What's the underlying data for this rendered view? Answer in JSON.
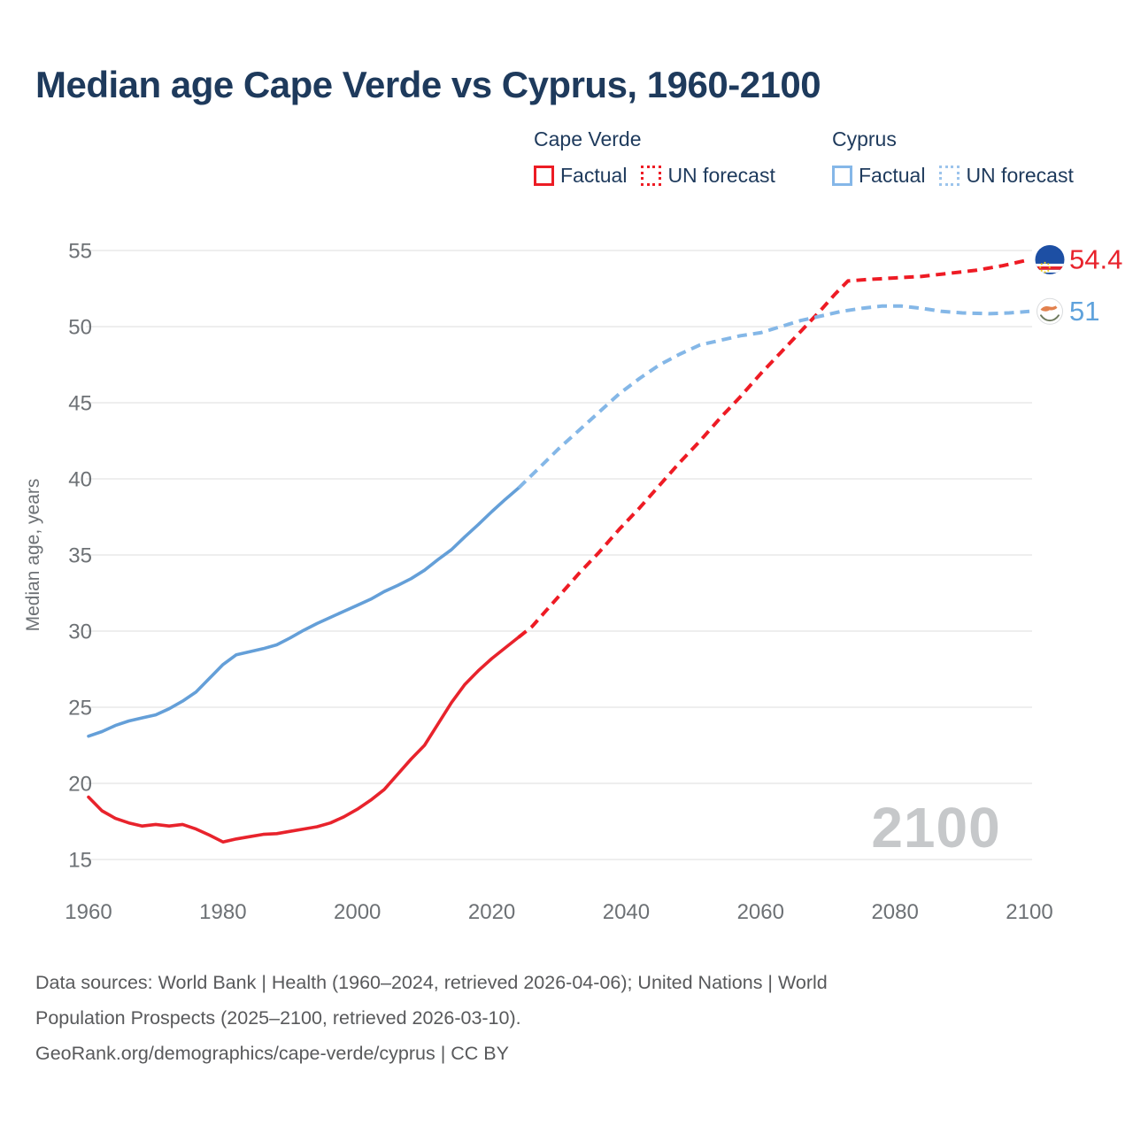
{
  "title": "Median age Cape Verde vs Cyprus, 1960-2100",
  "legend": {
    "groups": [
      {
        "name": "Cape Verde",
        "color_key": "legend_red",
        "items": [
          {
            "label": "Factual",
            "line_style": "solid"
          },
          {
            "label": "UN forecast",
            "line_style": "dotted"
          }
        ]
      },
      {
        "name": "Cyprus",
        "color_key": "legend_blue",
        "items": [
          {
            "label": "Factual",
            "line_style": "solid"
          },
          {
            "label": "UN forecast",
            "line_style": "dotted"
          }
        ]
      }
    ]
  },
  "colors": {
    "cape_verde": "#e8232c",
    "cape_verde_forecast": "#ee1b24",
    "cyprus": "#649fd8",
    "cyprus_forecast": "#84b7e7",
    "cyprus_label": "#5fa2dc",
    "legend_red": "#ec1c24",
    "legend_red_dotted": "#ee1b24",
    "legend_blue": "#85b7e8",
    "legend_blue_dotted": "#9cc4ec",
    "title_text": "#1e3a5c",
    "legend_text": "#1e3a5c",
    "axis_text": "#6d7175",
    "gridline": "#e8e8e8",
    "watermark": "#c6c8ca",
    "footer_text": "#58595b",
    "flag_cv_blue": "#1d4fa4",
    "flag_star_yellow": "#f7d116",
    "flag_cy_copper": "#e2814e",
    "flag_cy_olive": "#6e7a5e"
  },
  "end_labels": {
    "cape_verde": "54.4",
    "cyprus": "51"
  },
  "watermark": "2100",
  "footer": {
    "lines": [
      "Data sources: World Bank | Health (1960–2024, retrieved 2026-04-06); United Nations | World",
      "Population Prospects (2025–2100, retrieved 2026-03-10).",
      "GeoRank.org/demographics/cape-verde/cyprus | CC BY"
    ]
  },
  "chart_data": {
    "type": "line",
    "title": "Median age Cape Verde vs Cyprus, 1960-2100",
    "xlabel": "",
    "ylabel": "Median age, years",
    "xlim": [
      1960,
      2100
    ],
    "ylim": [
      15,
      55
    ],
    "x_ticks": [
      1960,
      1980,
      2000,
      2020,
      2040,
      2060,
      2080,
      2100
    ],
    "y_ticks": [
      15,
      20,
      25,
      30,
      35,
      40,
      45,
      50,
      55
    ],
    "grid": "horizontal",
    "legend_position": "top-right",
    "series": [
      {
        "name": "Cape Verde — Factual",
        "color_key": "cape_verde",
        "style": "solid",
        "points": [
          [
            1960,
            19.1
          ],
          [
            1962,
            18.2
          ],
          [
            1964,
            17.7
          ],
          [
            1966,
            17.4
          ],
          [
            1968,
            17.2
          ],
          [
            1970,
            17.3
          ],
          [
            1972,
            17.2
          ],
          [
            1974,
            17.3
          ],
          [
            1976,
            17.0
          ],
          [
            1978,
            16.6
          ],
          [
            1980,
            16.15
          ],
          [
            1982,
            16.35
          ],
          [
            1984,
            16.5
          ],
          [
            1986,
            16.65
          ],
          [
            1988,
            16.7
          ],
          [
            1990,
            16.85
          ],
          [
            1992,
            17.0
          ],
          [
            1994,
            17.15
          ],
          [
            1996,
            17.4
          ],
          [
            1998,
            17.8
          ],
          [
            2000,
            18.3
          ],
          [
            2002,
            18.9
          ],
          [
            2004,
            19.6
          ],
          [
            2006,
            20.6
          ],
          [
            2008,
            21.6
          ],
          [
            2010,
            22.5
          ],
          [
            2012,
            23.9
          ],
          [
            2014,
            25.3
          ],
          [
            2016,
            26.5
          ],
          [
            2018,
            27.4
          ],
          [
            2020,
            28.2
          ],
          [
            2022,
            28.9
          ],
          [
            2024,
            29.6
          ]
        ]
      },
      {
        "name": "Cape Verde — UN forecast",
        "color_key": "cape_verde_forecast",
        "style": "dashed",
        "points": [
          [
            2024,
            29.6
          ],
          [
            2026,
            30.3
          ],
          [
            2028,
            31.3
          ],
          [
            2030,
            32.3
          ],
          [
            2033,
            33.8
          ],
          [
            2036,
            35.2
          ],
          [
            2039,
            36.7
          ],
          [
            2042,
            38.1
          ],
          [
            2045,
            39.6
          ],
          [
            2048,
            41.1
          ],
          [
            2051,
            42.5
          ],
          [
            2054,
            44.0
          ],
          [
            2057,
            45.4
          ],
          [
            2060,
            46.9
          ],
          [
            2063,
            48.3
          ],
          [
            2066,
            49.7
          ],
          [
            2069,
            51.1
          ],
          [
            2071,
            52.1
          ],
          [
            2073,
            53.0
          ],
          [
            2076,
            53.1
          ],
          [
            2080,
            53.2
          ],
          [
            2084,
            53.3
          ],
          [
            2088,
            53.5
          ],
          [
            2092,
            53.7
          ],
          [
            2096,
            54.0
          ],
          [
            2100,
            54.4
          ]
        ]
      },
      {
        "name": "Cyprus — Factual",
        "color_key": "cyprus",
        "style": "solid",
        "points": [
          [
            1960,
            23.1
          ],
          [
            1962,
            23.4
          ],
          [
            1964,
            23.8
          ],
          [
            1966,
            24.1
          ],
          [
            1968,
            24.3
          ],
          [
            1970,
            24.5
          ],
          [
            1972,
            24.9
          ],
          [
            1974,
            25.4
          ],
          [
            1976,
            26.0
          ],
          [
            1978,
            26.9
          ],
          [
            1980,
            27.8
          ],
          [
            1982,
            28.45
          ],
          [
            1984,
            28.65
          ],
          [
            1986,
            28.85
          ],
          [
            1988,
            29.1
          ],
          [
            1990,
            29.55
          ],
          [
            1992,
            30.05
          ],
          [
            1994,
            30.5
          ],
          [
            1996,
            30.9
          ],
          [
            1998,
            31.3
          ],
          [
            2000,
            31.7
          ],
          [
            2002,
            32.1
          ],
          [
            2004,
            32.6
          ],
          [
            2006,
            33.0
          ],
          [
            2008,
            33.45
          ],
          [
            2010,
            34.0
          ],
          [
            2012,
            34.7
          ],
          [
            2014,
            35.35
          ],
          [
            2016,
            36.2
          ],
          [
            2018,
            37.0
          ],
          [
            2020,
            37.85
          ],
          [
            2022,
            38.65
          ],
          [
            2024,
            39.4
          ]
        ]
      },
      {
        "name": "Cyprus — UN forecast",
        "color_key": "cyprus_forecast",
        "style": "dashed",
        "points": [
          [
            2024,
            39.4
          ],
          [
            2027,
            40.7
          ],
          [
            2030,
            42.0
          ],
          [
            2033,
            43.2
          ],
          [
            2036,
            44.4
          ],
          [
            2039,
            45.6
          ],
          [
            2042,
            46.6
          ],
          [
            2045,
            47.5
          ],
          [
            2048,
            48.2
          ],
          [
            2051,
            48.8
          ],
          [
            2054,
            49.1
          ],
          [
            2057,
            49.4
          ],
          [
            2060,
            49.6
          ],
          [
            2063,
            50.0
          ],
          [
            2066,
            50.4
          ],
          [
            2069,
            50.7
          ],
          [
            2072,
            51.0
          ],
          [
            2075,
            51.2
          ],
          [
            2078,
            51.35
          ],
          [
            2081,
            51.35
          ],
          [
            2084,
            51.2
          ],
          [
            2087,
            51.0
          ],
          [
            2090,
            50.9
          ],
          [
            2094,
            50.85
          ],
          [
            2097,
            50.9
          ],
          [
            2100,
            51.0
          ]
        ]
      }
    ]
  }
}
